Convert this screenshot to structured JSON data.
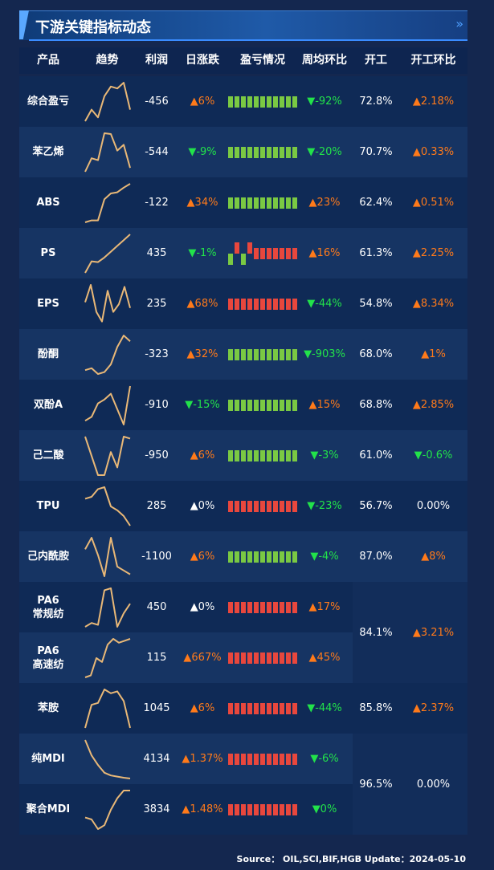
{
  "title": "下游关键指标动态",
  "title_arrows": "»",
  "headers": [
    "产品",
    "趋势",
    "利润",
    "日涨跌",
    "盈亏情况",
    "周均环比",
    "开工",
    "开工环比"
  ],
  "rows": [
    {
      "name": "综合盈亏",
      "trend": [
        0.0,
        0.3,
        0.1,
        0.65,
        0.9,
        0.85,
        1.0,
        0.3
      ],
      "profit": "-456",
      "daily": "▲6%",
      "daily_dir": "up",
      "pl": [
        "g",
        "g",
        "g",
        "g",
        "g",
        "g",
        "g",
        "g",
        "g",
        "g",
        "g"
      ],
      "weekly": "▼-92%",
      "weekly_dir": "down",
      "op": "72.8%",
      "op_chg": "▲2.18%",
      "op_chg_dir": "up"
    },
    {
      "name": "苯乙烯",
      "trend": [
        0.0,
        0.35,
        0.3,
        1.0,
        0.98,
        0.55,
        0.7,
        0.1
      ],
      "profit": "-544",
      "daily": "▼-9%",
      "daily_dir": "down",
      "pl": [
        "g",
        "g",
        "g",
        "g",
        "g",
        "g",
        "g",
        "g",
        "g",
        "g",
        "g"
      ],
      "weekly": "▼-20%",
      "weekly_dir": "down",
      "op": "70.7%",
      "op_chg": "▲0.33%",
      "op_chg_dir": "up"
    },
    {
      "name": "ABS",
      "trend": [
        0.0,
        0.05,
        0.05,
        0.6,
        0.75,
        0.78,
        0.9,
        1.0
      ],
      "profit": "-122",
      "daily": "▲34%",
      "daily_dir": "up",
      "pl": [
        "g",
        "g",
        "g",
        "g",
        "g",
        "g",
        "g",
        "g",
        "g",
        "g",
        "g"
      ],
      "weekly": "▲23%",
      "weekly_dir": "up",
      "op": "62.4%",
      "op_chg": "▲0.51%",
      "op_chg_dir": "up"
    },
    {
      "name": "PS",
      "trend": [
        0.0,
        0.3,
        0.28,
        0.4,
        0.55,
        0.7,
        0.85,
        1.0
      ],
      "profit": "435",
      "daily": "▼-1%",
      "daily_dir": "down",
      "pl": [
        "gd",
        "rt",
        "gd",
        "rt",
        "r",
        "r",
        "r",
        "r",
        "r",
        "r",
        "r"
      ],
      "weekly": "▲16%",
      "weekly_dir": "up",
      "op": "61.3%",
      "op_chg": "▲2.25%",
      "op_chg_dir": "up"
    },
    {
      "name": "EPS",
      "trend": [
        0.55,
        1.0,
        0.3,
        0.05,
        0.85,
        0.3,
        0.5,
        0.95,
        0.4
      ],
      "profit": "235",
      "daily": "▲68%",
      "daily_dir": "up",
      "pl": [
        "r",
        "r",
        "r",
        "r",
        "r",
        "r",
        "r",
        "r",
        "r",
        "r",
        "r"
      ],
      "weekly": "▼-44%",
      "weekly_dir": "down",
      "op": "54.8%",
      "op_chg": "▲8.34%",
      "op_chg_dir": "up"
    },
    {
      "name": "酚酮",
      "trend": [
        0.1,
        0.15,
        0.0,
        0.05,
        0.25,
        0.7,
        1.0,
        0.85
      ],
      "profit": "-323",
      "daily": "▲32%",
      "daily_dir": "up",
      "pl": [
        "g",
        "g",
        "g",
        "g",
        "g",
        "g",
        "g",
        "g",
        "g",
        "g",
        "g"
      ],
      "weekly": "▼-903%",
      "weekly_dir": "down",
      "op": "68.0%",
      "op_chg": "▲1%",
      "op_chg_dir": "up"
    },
    {
      "name": "双酚A",
      "trend": [
        0.1,
        0.2,
        0.55,
        0.65,
        0.8,
        0.4,
        0.0,
        1.0
      ],
      "profit": "-910",
      "daily": "▼-15%",
      "daily_dir": "down",
      "pl": [
        "g",
        "g",
        "g",
        "g",
        "g",
        "g",
        "g",
        "g",
        "g",
        "g",
        "g"
      ],
      "weekly": "▲15%",
      "weekly_dir": "up",
      "op": "68.8%",
      "op_chg": "▲2.85%",
      "op_chg_dir": "up"
    },
    {
      "name": "己二酸",
      "trend": [
        1.0,
        0.5,
        0.0,
        0.0,
        0.6,
        0.2,
        1.0,
        0.95
      ],
      "profit": "-950",
      "daily": "▲6%",
      "daily_dir": "up",
      "pl": [
        "g",
        "g",
        "g",
        "g",
        "g",
        "g",
        "g",
        "g",
        "g",
        "g",
        "g"
      ],
      "weekly": "▼-3%",
      "weekly_dir": "down",
      "op": "61.0%",
      "op_chg": "▼-0.6%",
      "op_chg_dir": "down"
    },
    {
      "name": "TPU",
      "trend": [
        0.7,
        0.75,
        0.95,
        1.0,
        0.5,
        0.4,
        0.25,
        0.0
      ],
      "profit": "285",
      "daily": "▲0%",
      "daily_dir": "flat",
      "pl": [
        "r",
        "r",
        "r",
        "r",
        "r",
        "r",
        "r",
        "r",
        "r",
        "r",
        "r"
      ],
      "weekly": "▼-23%",
      "weekly_dir": "down",
      "op": "56.7%",
      "op_chg": "0.00%",
      "op_chg_dir": "flat"
    },
    {
      "name": "己内酰胺",
      "trend": [
        0.7,
        1.0,
        0.55,
        0.0,
        1.0,
        0.25,
        0.15,
        0.05
      ],
      "profit": "-1100",
      "daily": "▲6%",
      "daily_dir": "up",
      "pl": [
        "g",
        "g",
        "g",
        "g",
        "g",
        "g",
        "g",
        "g",
        "g",
        "g",
        "g"
      ],
      "weekly": "▼-4%",
      "weekly_dir": "down",
      "op": "87.0%",
      "op_chg": "▲8%",
      "op_chg_dir": "up"
    },
    {
      "name": "PA6\n常规纺",
      "trend": [
        0.0,
        0.1,
        0.05,
        0.95,
        1.0,
        0.0,
        0.35,
        0.6
      ],
      "profit": "450",
      "daily": "▲0%",
      "daily_dir": "flat",
      "pl": [
        "r",
        "r",
        "r",
        "r",
        "r",
        "r",
        "r",
        "r",
        "r",
        "r",
        "r"
      ],
      "weekly": "▲17%",
      "weekly_dir": "up"
    },
    {
      "name": "PA6\n高速纺",
      "trend": [
        0.0,
        0.05,
        0.5,
        0.4,
        0.85,
        1.0,
        0.9,
        0.95,
        1.0
      ],
      "profit": "115",
      "daily": "▲667%",
      "daily_dir": "up",
      "pl": [
        "r",
        "r",
        "r",
        "r",
        "r",
        "r",
        "r",
        "r",
        "r",
        "r",
        "r"
      ],
      "weekly": "▲45%",
      "weekly_dir": "up"
    },
    {
      "name": "苯胺",
      "trend": [
        0.0,
        0.6,
        0.65,
        1.0,
        0.9,
        0.95,
        0.7,
        0.0
      ],
      "profit": "1045",
      "daily": "▲6%",
      "daily_dir": "up",
      "pl": [
        "r",
        "r",
        "r",
        "r",
        "r",
        "r",
        "r",
        "r",
        "r",
        "r",
        "r"
      ],
      "weekly": "▼-44%",
      "weekly_dir": "down",
      "op": "85.8%",
      "op_chg": "▲2.37%",
      "op_chg_dir": "up"
    },
    {
      "name": "纯MDI",
      "trend": [
        1.0,
        0.6,
        0.35,
        0.15,
        0.08,
        0.05,
        0.02,
        0.0
      ],
      "profit": "4134",
      "daily": "▲1.37%",
      "daily_dir": "up",
      "pl": [
        "r",
        "r",
        "r",
        "r",
        "r",
        "r",
        "r",
        "r",
        "r",
        "r",
        "r"
      ],
      "weekly": "▼-6%",
      "weekly_dir": "down"
    },
    {
      "name": "聚合MDI",
      "trend": [
        0.3,
        0.25,
        0.0,
        0.1,
        0.5,
        0.8,
        1.0,
        1.0
      ],
      "profit": "3834",
      "daily": "▲1.48%",
      "daily_dir": "up",
      "pl": [
        "r",
        "r",
        "r",
        "r",
        "r",
        "r",
        "r",
        "r",
        "r",
        "r",
        "r"
      ],
      "weekly": "▼0%",
      "weekly_dir": "down"
    }
  ],
  "merged": [
    {
      "op": "84.1%",
      "op_chg": "▲3.21%",
      "op_chg_dir": "up"
    },
    {
      "op": "96.5%",
      "op_chg": "0.00%",
      "op_chg_dir": "flat"
    }
  ],
  "colors": {
    "up": "#ff7a1a",
    "down": "#22e24a",
    "bar_red": "#e8473d",
    "bar_green": "#7ac943",
    "spark": "#e9b877"
  },
  "footer": "Source：  OIL,SCI,BIF,HGB   Update：2024-05-10"
}
